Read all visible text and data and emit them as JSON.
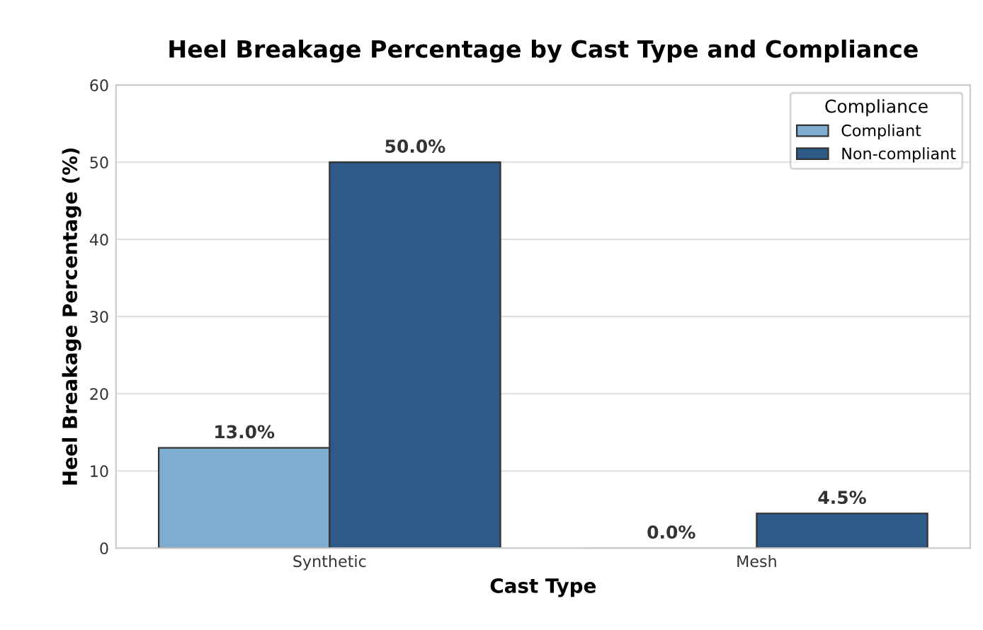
{
  "chart_data": {
    "type": "bar",
    "title": "Heel Breakage Percentage by Cast Type and Compliance",
    "xlabel": "Cast Type",
    "ylabel": "Heel Breakage Percentage (%)",
    "legend_title": "Compliance",
    "categories": [
      "Synthetic",
      "Mesh"
    ],
    "series": [
      {
        "name": "Compliant",
        "color": "#7eadcf",
        "values": [
          13.0,
          0.0
        ],
        "value_labels": [
          "13.0%",
          "0.0%"
        ]
      },
      {
        "name": "Non-compliant",
        "color": "#2e5a87",
        "values": [
          50.0,
          4.5
        ],
        "value_labels": [
          "50.0%",
          "4.5%"
        ]
      }
    ],
    "ylim": [
      0,
      60
    ],
    "yticks": [
      0,
      10,
      20,
      30,
      40,
      50,
      60
    ],
    "grid": "y",
    "legend": "top right"
  }
}
